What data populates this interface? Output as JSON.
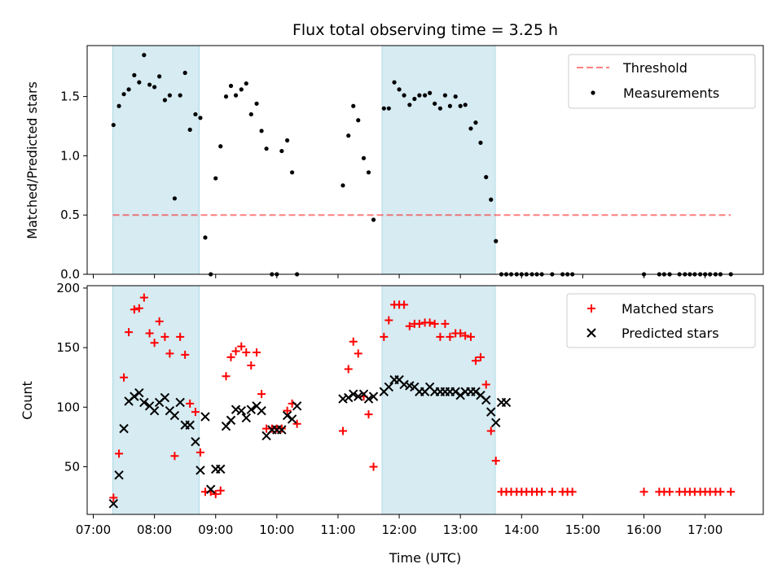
{
  "chart_data": {
    "title": "Flux total observing time = 3.25 h",
    "xlabel": "Time (UTC)",
    "x_unit": "hours UTC",
    "xlim": [
      6.9,
      17.95
    ],
    "x_ticks": [
      7,
      8,
      9,
      10,
      11,
      12,
      13,
      14,
      15,
      16,
      17
    ],
    "x_tick_labels": [
      "07:00",
      "08:00",
      "09:00",
      "10:00",
      "11:00",
      "12:00",
      "13:00",
      "14:00",
      "15:00",
      "16:00",
      "17:00"
    ],
    "shaded_intervals": [
      [
        7.32,
        8.73
      ],
      [
        11.72,
        13.57
      ]
    ],
    "shade_color": "#add8e6",
    "panels": [
      {
        "type": "scatter",
        "ylabel": "Matched/Predicted stars",
        "ylim": [
          0,
          1.93
        ],
        "y_ticks": [
          0.0,
          0.5,
          1.0,
          1.5
        ],
        "y_tick_labels": [
          "0.0",
          "0.5",
          "1.0",
          "1.5"
        ],
        "legend_position": "upper-right",
        "threshold": {
          "name": "Threshold",
          "value": 0.5,
          "x_range": [
            7.32,
            17.42
          ],
          "color": "#ff0000",
          "style": "dashed",
          "alpha": 0.5
        },
        "series": [
          {
            "name": "Measurements",
            "marker": "dot",
            "color": "#000000",
            "x": [
              7.33,
              7.42,
              7.5,
              7.58,
              7.67,
              7.75,
              7.83,
              7.92,
              8.0,
              8.08,
              8.17,
              8.25,
              8.33,
              8.42,
              8.5,
              8.58,
              8.67,
              8.75,
              8.83,
              8.92,
              9.0,
              9.08,
              9.17,
              9.25,
              9.33,
              9.42,
              9.5,
              9.58,
              9.67,
              9.75,
              9.83,
              9.92,
              10.0,
              10.08,
              10.17,
              10.25,
              10.33,
              11.08,
              11.17,
              11.25,
              11.33,
              11.42,
              11.5,
              11.58,
              11.75,
              11.83,
              11.92,
              12.0,
              12.08,
              12.17,
              12.25,
              12.33,
              12.42,
              12.5,
              12.58,
              12.67,
              12.75,
              12.83,
              12.92,
              13.0,
              13.08,
              13.17,
              13.25,
              13.33,
              13.42,
              13.5,
              13.58,
              13.67,
              13.75,
              13.83,
              13.92,
              14.0,
              14.08,
              14.17,
              14.25,
              14.33,
              14.5,
              14.67,
              14.75,
              14.83,
              16.0,
              16.25,
              16.33,
              16.42,
              16.58,
              16.67,
              16.75,
              16.83,
              16.92,
              17.0,
              17.08,
              17.17,
              17.25,
              17.42
            ],
            "y": [
              1.26,
              1.42,
              1.52,
              1.56,
              1.68,
              1.62,
              1.85,
              1.6,
              1.58,
              1.67,
              1.47,
              1.51,
              0.64,
              1.51,
              1.7,
              1.22,
              1.35,
              1.32,
              0.31,
              0.0,
              0.81,
              1.08,
              1.5,
              1.59,
              1.51,
              1.56,
              1.61,
              1.35,
              1.44,
              1.21,
              1.06,
              0.0,
              0.0,
              1.04,
              1.13,
              0.86,
              0.0,
              0.75,
              1.17,
              1.42,
              1.3,
              0.98,
              0.86,
              0.46,
              1.4,
              1.4,
              1.62,
              1.56,
              1.51,
              1.43,
              1.48,
              1.51,
              1.51,
              1.53,
              1.44,
              1.4,
              1.51,
              1.42,
              1.5,
              1.42,
              1.43,
              1.23,
              1.28,
              1.11,
              0.82,
              0.63,
              0.28,
              0.0,
              0.0,
              0.0,
              0.0,
              0.0,
              0.0,
              0.0,
              0.0,
              0.0,
              0.0,
              0.0,
              0.0,
              0.0,
              0.0,
              0.0,
              0.0,
              0.0,
              0.0,
              0.0,
              0.0,
              0.0,
              0.0,
              0.0,
              0.0,
              0.0,
              0.0,
              0.0
            ]
          }
        ]
      },
      {
        "type": "scatter",
        "ylabel": "Count",
        "ylim": [
          10,
          202
        ],
        "y_ticks": [
          50,
          100,
          150,
          200
        ],
        "y_tick_labels": [
          "50",
          "100",
          "150",
          "200"
        ],
        "legend_position": "upper-right",
        "series": [
          {
            "name": "Matched stars",
            "marker": "plus",
            "color": "#ff0000",
            "x": [
              7.33,
              7.42,
              7.5,
              7.58,
              7.67,
              7.75,
              7.83,
              7.92,
              8.0,
              8.08,
              8.17,
              8.25,
              8.33,
              8.42,
              8.5,
              8.58,
              8.67,
              8.75,
              8.83,
              8.92,
              9.0,
              9.08,
              9.17,
              9.25,
              9.33,
              9.42,
              9.5,
              9.58,
              9.67,
              9.75,
              9.83,
              9.92,
              10.0,
              10.08,
              10.17,
              10.25,
              10.33,
              11.08,
              11.17,
              11.25,
              11.33,
              11.42,
              11.5,
              11.58,
              11.75,
              11.83,
              11.92,
              12.0,
              12.08,
              12.17,
              12.25,
              12.33,
              12.42,
              12.5,
              12.58,
              12.67,
              12.75,
              12.83,
              12.92,
              13.0,
              13.08,
              13.17,
              13.25,
              13.33,
              13.42,
              13.5,
              13.58,
              13.67,
              13.75,
              13.83,
              13.92,
              14.0,
              14.08,
              14.17,
              14.25,
              14.33,
              14.5,
              14.67,
              14.75,
              14.83,
              16.0,
              16.25,
              16.33,
              16.42,
              16.58,
              16.67,
              16.75,
              16.83,
              16.92,
              17.0,
              17.08,
              17.17,
              17.25,
              17.42
            ],
            "y": [
              24,
              61,
              125,
              163,
              182,
              183,
              192,
              162,
              154,
              172,
              159,
              145,
              59,
              159,
              144,
              103,
              96,
              62,
              29,
              29,
              27,
              30,
              126,
              142,
              147,
              151,
              146,
              135,
              146,
              111,
              82,
              82,
              82,
              82,
              97,
              103,
              86,
              80,
              132,
              155,
              145,
              109,
              94,
              50,
              159,
              173,
              186,
              186,
              186,
              168,
              170,
              170,
              171,
              171,
              170,
              159,
              170,
              159,
              162,
              162,
              160,
              159,
              139,
              142,
              119,
              80,
              55,
              29,
              29,
              29,
              29,
              29,
              29,
              29,
              29,
              29,
              29,
              29,
              29,
              29,
              29,
              29,
              29,
              29,
              29,
              29,
              29,
              29,
              29,
              29,
              29,
              29,
              29,
              29
            ]
          },
          {
            "name": "Predicted stars",
            "marker": "x",
            "color": "#000000",
            "x": [
              7.33,
              7.42,
              7.5,
              7.58,
              7.67,
              7.75,
              7.83,
              7.92,
              8.0,
              8.08,
              8.17,
              8.25,
              8.33,
              8.42,
              8.5,
              8.58,
              8.67,
              8.75,
              8.83,
              8.92,
              9.0,
              9.08,
              9.17,
              9.25,
              9.33,
              9.42,
              9.5,
              9.58,
              9.67,
              9.75,
              9.83,
              9.92,
              10.0,
              10.08,
              10.17,
              10.25,
              10.33,
              11.08,
              11.17,
              11.25,
              11.33,
              11.42,
              11.5,
              11.58,
              11.75,
              11.83,
              11.92,
              12.0,
              12.08,
              12.17,
              12.25,
              12.33,
              12.42,
              12.5,
              12.58,
              12.67,
              12.75,
              12.83,
              12.92,
              13.0,
              13.08,
              13.17,
              13.25,
              13.33,
              13.42,
              13.5,
              13.58,
              13.67,
              13.75
            ],
            "y": [
              19,
              43,
              82,
              105,
              109,
              112,
              104,
              101,
              97,
              104,
              108,
              97,
              93,
              104,
              85,
              85,
              71,
              47,
              92,
              31,
              48,
              48,
              84,
              89,
              98,
              97,
              91,
              98,
              101,
              97,
              76,
              81,
              81,
              81,
              93,
              90,
              101,
              107,
              108,
              111,
              109,
              111,
              107,
              109,
              113,
              117,
              123,
              123,
              119,
              118,
              117,
              113,
              113,
              117,
              113,
              113,
              113,
              113,
              113,
              110,
              113,
              113,
              113,
              110,
              106,
              96,
              87,
              104,
              104
            ]
          }
        ]
      }
    ]
  }
}
